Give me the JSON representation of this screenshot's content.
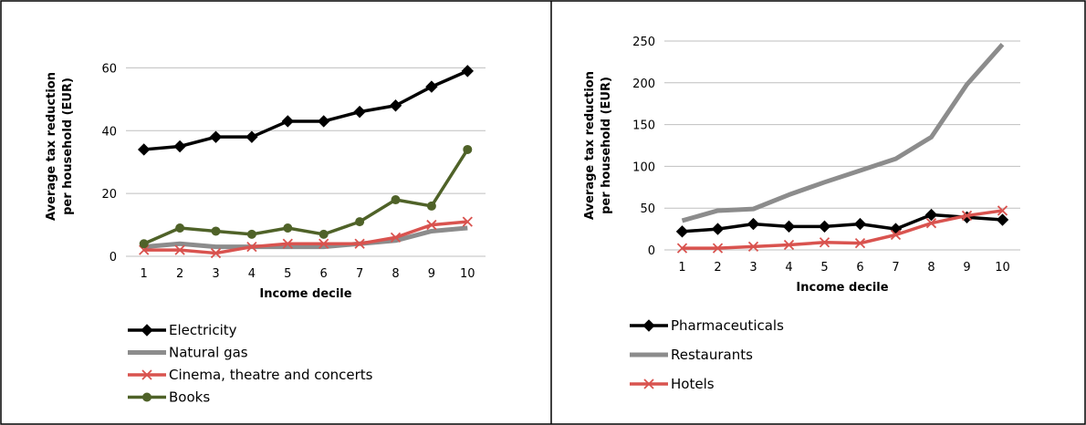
{
  "chart_data": [
    {
      "type": "line",
      "xlabel": "Income decile",
      "ylabel": [
        "Average tax reduction",
        "per household (EUR)"
      ],
      "categories": [
        "1",
        "2",
        "3",
        "4",
        "5",
        "6",
        "7",
        "8",
        "9",
        "10"
      ],
      "ylim": [
        0,
        70
      ],
      "yticks": [
        "0",
        "20",
        "40",
        "60"
      ],
      "grid": true,
      "legend_position": "bottom-left",
      "series": [
        {
          "name": "Electricity",
          "color": "#000000",
          "marker": "diamond",
          "values": [
            34,
            35,
            38,
            38,
            43,
            43,
            46,
            48,
            54,
            59
          ]
        },
        {
          "name": "Natural gas",
          "color": "#8c8c8c",
          "marker": "none",
          "values": [
            3,
            4,
            3,
            3,
            3,
            3,
            4,
            5,
            8,
            9
          ]
        },
        {
          "name": "Cinema, theatre and concerts",
          "color": "#d9534f",
          "marker": "x",
          "values": [
            2,
            2,
            1,
            3,
            4,
            4,
            4,
            6,
            10,
            11
          ]
        },
        {
          "name": "Books",
          "color": "#4f6228",
          "marker": "circle",
          "values": [
            4,
            9,
            8,
            7,
            9,
            7,
            11,
            18,
            16,
            34
          ]
        }
      ]
    },
    {
      "type": "line",
      "xlabel": "Income decile",
      "ylabel": [
        "Average tax reduction",
        "per household (EUR)"
      ],
      "categories": [
        "1",
        "2",
        "3",
        "4",
        "5",
        "6",
        "7",
        "8",
        "9",
        "10"
      ],
      "ylim": [
        0,
        250
      ],
      "yticks": [
        "0",
        "50",
        "100",
        "150",
        "200",
        "250"
      ],
      "grid": true,
      "legend_position": "bottom-left",
      "series": [
        {
          "name": "Pharmaceuticals",
          "color": "#000000",
          "marker": "diamond",
          "values": [
            22,
            25,
            31,
            28,
            28,
            31,
            25,
            42,
            39,
            36
          ]
        },
        {
          "name": "Restaurants",
          "color": "#8c8c8c",
          "marker": "none",
          "values": [
            35,
            47,
            49,
            66,
            81,
            95,
            109,
            135,
            198,
            246
          ]
        },
        {
          "name": "Hotels",
          "color": "#d9534f",
          "marker": "x",
          "values": [
            2,
            2,
            4,
            6,
            9,
            8,
            18,
            32,
            41,
            47
          ]
        }
      ]
    }
  ]
}
